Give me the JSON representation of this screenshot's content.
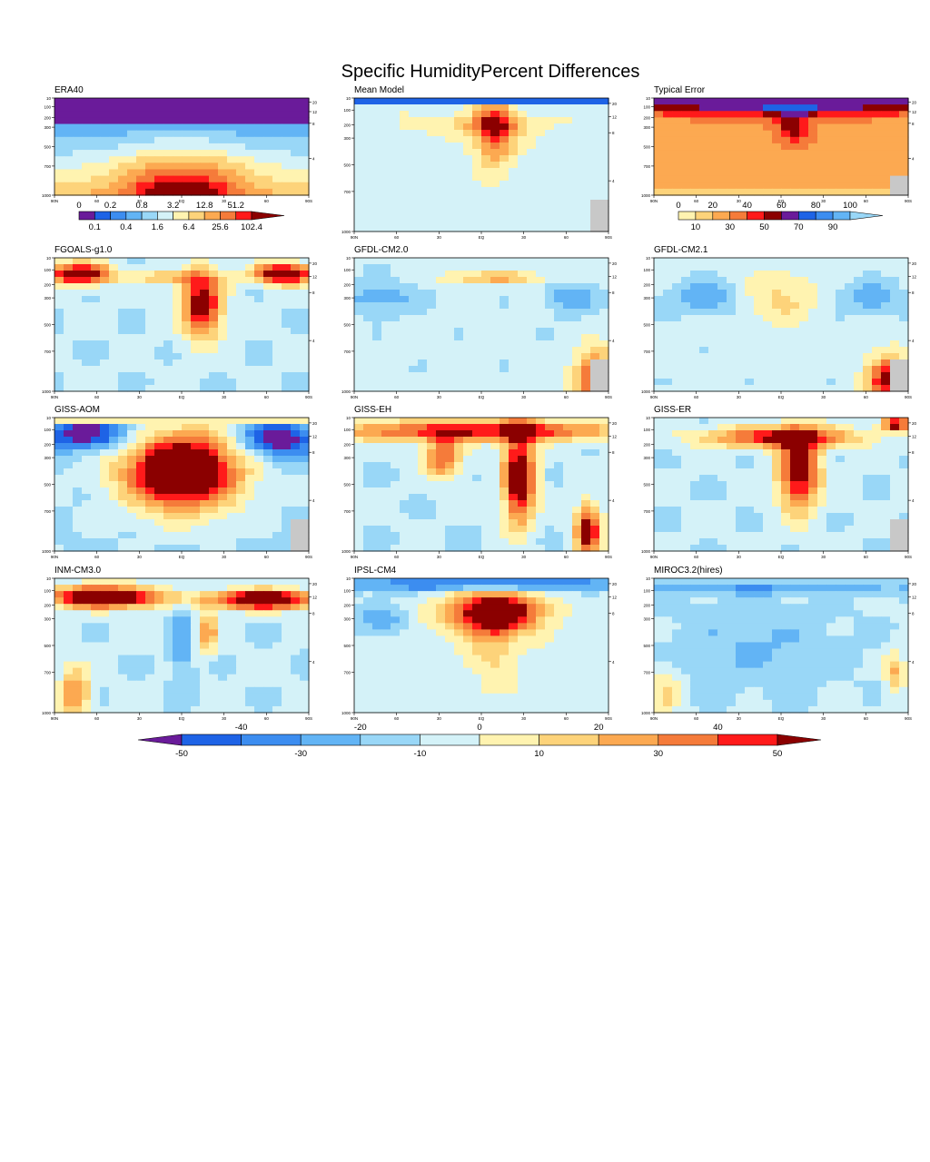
{
  "title": "Specific HumidityPercent Differences",
  "lat_ticks": [
    "90N",
    "60",
    "30",
    "EQ",
    "30",
    "60",
    "90S"
  ],
  "colors": {
    "diff_scale": [
      "#6a1b9a",
      "#1e63e6",
      "#3c8df0",
      "#62b4f5",
      "#99d7f7",
      "#d4f2f8",
      "#fff3b0",
      "#fdd37a",
      "#fca951",
      "#f57b3a",
      "#ff1a1a",
      "#8b0000"
    ],
    "era40_scale": [
      "#6a1b9a",
      "#1e63e6",
      "#3c8df0",
      "#62b4f5",
      "#99d7f7",
      "#d4f2f8",
      "#fff3b0",
      "#fdd37a",
      "#fca951",
      "#f57b3a",
      "#ff1a1a",
      "#8b0000"
    ],
    "error_scale": [
      "#fff3b0",
      "#fdd37a",
      "#fca951",
      "#f57b3a",
      "#ff1a1a",
      "#8b0000",
      "#6a1b9a",
      "#1e63e6",
      "#3c8df0",
      "#62b4f5",
      "#99d7f7"
    ],
    "missing": "#c8c8c8"
  },
  "chart_data": [
    {
      "type": "heatmap",
      "name": "ERA40",
      "left_ticks": [
        "10",
        "100",
        "200",
        "300",
        "500",
        "700",
        "1000"
      ],
      "right_ticks": [
        "20",
        "12",
        "8",
        "4"
      ]
    },
    {
      "type": "heatmap",
      "name": "Mean Model",
      "left_ticks": [
        "10",
        "100",
        "200",
        "300",
        "500",
        "700",
        "1000"
      ],
      "right_ticks": [
        "20",
        "12",
        "8",
        "4"
      ]
    },
    {
      "type": "heatmap",
      "name": "Typical Error",
      "left_ticks": [
        "10",
        "100",
        "200",
        "300",
        "500",
        "700",
        "1000"
      ],
      "right_ticks": [
        "20",
        "12",
        "8",
        "4"
      ]
    },
    {
      "type": "heatmap",
      "name": "FGOALS-g1.0",
      "left_ticks": [
        "10",
        "100",
        "200",
        "300",
        "500",
        "700",
        "1000"
      ],
      "right_ticks": [
        "20",
        "12",
        "8",
        "4"
      ]
    },
    {
      "type": "heatmap",
      "name": "GFDL-CM2.0",
      "left_ticks": [
        "10",
        "100",
        "200",
        "300",
        "500",
        "700",
        "1000"
      ],
      "right_ticks": [
        "20",
        "12",
        "8",
        "4"
      ]
    },
    {
      "type": "heatmap",
      "name": "GFDL-CM2.1",
      "left_ticks": [
        "10",
        "100",
        "200",
        "300",
        "500",
        "700",
        "1000"
      ],
      "right_ticks": [
        "20",
        "12",
        "8",
        "4"
      ]
    },
    {
      "type": "heatmap",
      "name": "GISS-AOM",
      "left_ticks": [
        "10",
        "100",
        "200",
        "300",
        "500",
        "700",
        "1000"
      ],
      "right_ticks": [
        "20",
        "12",
        "8",
        "4"
      ]
    },
    {
      "type": "heatmap",
      "name": "GISS-EH",
      "left_ticks": [
        "10",
        "100",
        "200",
        "300",
        "500",
        "700",
        "1000"
      ],
      "right_ticks": [
        "20",
        "12",
        "8",
        "4"
      ]
    },
    {
      "type": "heatmap",
      "name": "GISS-ER",
      "left_ticks": [
        "10",
        "100",
        "200",
        "300",
        "500",
        "700",
        "1000"
      ],
      "right_ticks": [
        "20",
        "12",
        "8",
        "4"
      ]
    },
    {
      "type": "heatmap",
      "name": "INM-CM3.0",
      "left_ticks": [
        "10",
        "100",
        "200",
        "300",
        "500",
        "700",
        "1000"
      ],
      "right_ticks": [
        "20",
        "12",
        "8",
        "4"
      ]
    },
    {
      "type": "heatmap",
      "name": "IPSL-CM4",
      "left_ticks": [
        "10",
        "100",
        "200",
        "300",
        "500",
        "700",
        "1000"
      ],
      "right_ticks": [
        "20",
        "12",
        "8",
        "4"
      ]
    },
    {
      "type": "heatmap",
      "name": "MIROC3.2(hires)",
      "left_ticks": [
        "10",
        "100",
        "200",
        "300",
        "500",
        "700",
        "1000"
      ],
      "right_ticks": [
        "20",
        "12",
        "8",
        "4"
      ]
    }
  ],
  "colorbars": {
    "era40": {
      "top_labels": [
        "0",
        "0.2",
        "0.8",
        "3.2",
        "12.8",
        "51.2"
      ],
      "bottom_labels": [
        "0.1",
        "0.4",
        "1.6",
        "6.4",
        "25.6",
        "102.4"
      ]
    },
    "error": {
      "top_labels": [
        "0",
        "20",
        "40",
        "60",
        "80",
        "100"
      ],
      "bottom_labels": [
        "10",
        "30",
        "50",
        "70",
        "90"
      ]
    },
    "diff": {
      "top_labels": [
        "-40",
        "-20",
        "0",
        "20",
        "40"
      ],
      "bottom_labels": [
        "-50",
        "-30",
        "-10",
        "10",
        "30",
        "50"
      ]
    }
  }
}
